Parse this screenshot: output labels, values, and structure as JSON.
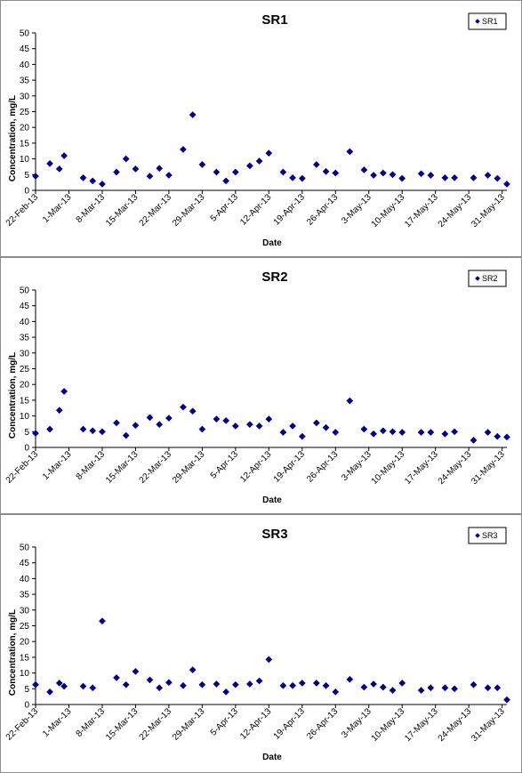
{
  "chart_data": [
    {
      "type": "scatter",
      "title": "SR1",
      "xlabel": "Date",
      "ylabel": "Concentration, mg/L",
      "ylim": [
        0,
        50
      ],
      "yticks": [
        0,
        5,
        10,
        15,
        20,
        25,
        30,
        35,
        40,
        45,
        50
      ],
      "xlim": [
        "2013-02-22",
        "2013-06-01"
      ],
      "xticks": [
        "22-Feb-13",
        "1-Mar-13",
        "8-Mar-13",
        "15-Mar-13",
        "22-Mar-13",
        "29-Mar-13",
        "5-Apr-13",
        "12-Apr-13",
        "19-Apr-13",
        "26-Apr-13",
        "3-May-13",
        "10-May-13",
        "17-May-13",
        "24-May-13",
        "31-May-13"
      ],
      "grid": false,
      "legend": "top-right",
      "series": [
        {
          "name": "SR1",
          "color": "#00008B",
          "marker": "diamond",
          "points": [
            [
              "2013-02-22",
              4.5
            ],
            [
              "2013-02-25",
              8.5
            ],
            [
              "2013-02-27",
              6.8
            ],
            [
              "2013-02-28",
              11.0
            ],
            [
              "2013-03-04",
              4.0
            ],
            [
              "2013-03-06",
              3.0
            ],
            [
              "2013-03-08",
              2.0
            ],
            [
              "2013-03-11",
              5.8
            ],
            [
              "2013-03-13",
              10.0
            ],
            [
              "2013-03-15",
              6.8
            ],
            [
              "2013-03-18",
              4.5
            ],
            [
              "2013-03-20",
              7.0
            ],
            [
              "2013-03-22",
              4.8
            ],
            [
              "2013-03-25",
              13.0
            ],
            [
              "2013-03-27",
              24.0
            ],
            [
              "2013-03-29",
              8.2
            ],
            [
              "2013-04-01",
              5.8
            ],
            [
              "2013-04-03",
              3.0
            ],
            [
              "2013-04-05",
              5.8
            ],
            [
              "2013-04-08",
              7.8
            ],
            [
              "2013-04-10",
              9.3
            ],
            [
              "2013-04-12",
              11.8
            ],
            [
              "2013-04-15",
              5.8
            ],
            [
              "2013-04-17",
              4.0
            ],
            [
              "2013-04-19",
              3.8
            ],
            [
              "2013-04-22",
              8.2
            ],
            [
              "2013-04-24",
              6.0
            ],
            [
              "2013-04-26",
              5.5
            ],
            [
              "2013-04-29",
              12.3
            ],
            [
              "2013-05-02",
              6.5
            ],
            [
              "2013-05-04",
              4.8
            ],
            [
              "2013-05-06",
              5.5
            ],
            [
              "2013-05-08",
              5.0
            ],
            [
              "2013-05-10",
              3.8
            ],
            [
              "2013-05-14",
              5.3
            ],
            [
              "2013-05-16",
              4.8
            ],
            [
              "2013-05-19",
              4.0
            ],
            [
              "2013-05-21",
              4.0
            ],
            [
              "2013-05-25",
              4.0
            ],
            [
              "2013-05-28",
              4.8
            ],
            [
              "2013-05-30",
              3.8
            ],
            [
              "2013-06-01",
              2.0
            ]
          ]
        }
      ]
    },
    {
      "type": "scatter",
      "title": "SR2",
      "xlabel": "Date",
      "ylabel": "Concentration, mg/L",
      "ylim": [
        0,
        50
      ],
      "yticks": [
        0,
        5,
        10,
        15,
        20,
        25,
        30,
        35,
        40,
        45,
        50
      ],
      "xlim": [
        "2013-02-22",
        "2013-06-01"
      ],
      "xticks": [
        "22-Feb-13",
        "1-Mar-13",
        "8-Mar-13",
        "15-Mar-13",
        "22-Mar-13",
        "29-Mar-13",
        "5-Apr-13",
        "12-Apr-13",
        "19-Apr-13",
        "26-Apr-13",
        "3-May-13",
        "10-May-13",
        "17-May-13",
        "24-May-13",
        "31-May-13"
      ],
      "grid": false,
      "legend": "top-right",
      "series": [
        {
          "name": "SR2",
          "color": "#00008B",
          "marker": "diamond",
          "points": [
            [
              "2013-02-22",
              4.5
            ],
            [
              "2013-02-25",
              5.8
            ],
            [
              "2013-02-27",
              11.8
            ],
            [
              "2013-02-28",
              17.8
            ],
            [
              "2013-03-04",
              5.8
            ],
            [
              "2013-03-06",
              5.3
            ],
            [
              "2013-03-08",
              5.0
            ],
            [
              "2013-03-11",
              7.8
            ],
            [
              "2013-03-13",
              3.8
            ],
            [
              "2013-03-15",
              7.0
            ],
            [
              "2013-03-18",
              9.5
            ],
            [
              "2013-03-20",
              7.3
            ],
            [
              "2013-03-22",
              9.3
            ],
            [
              "2013-03-25",
              12.8
            ],
            [
              "2013-03-27",
              11.5
            ],
            [
              "2013-03-29",
              5.8
            ],
            [
              "2013-04-01",
              9.0
            ],
            [
              "2013-04-03",
              8.5
            ],
            [
              "2013-04-05",
              6.8
            ],
            [
              "2013-04-08",
              7.3
            ],
            [
              "2013-04-10",
              6.8
            ],
            [
              "2013-04-12",
              9.0
            ],
            [
              "2013-04-15",
              4.8
            ],
            [
              "2013-04-17",
              6.8
            ],
            [
              "2013-04-19",
              3.5
            ],
            [
              "2013-04-22",
              7.8
            ],
            [
              "2013-04-24",
              6.3
            ],
            [
              "2013-04-26",
              4.8
            ],
            [
              "2013-04-29",
              14.8
            ],
            [
              "2013-05-02",
              5.8
            ],
            [
              "2013-05-04",
              4.3
            ],
            [
              "2013-05-06",
              5.3
            ],
            [
              "2013-05-08",
              5.0
            ],
            [
              "2013-05-10",
              4.8
            ],
            [
              "2013-05-14",
              4.8
            ],
            [
              "2013-05-16",
              4.8
            ],
            [
              "2013-05-19",
              4.3
            ],
            [
              "2013-05-21",
              5.0
            ],
            [
              "2013-05-25",
              2.3
            ],
            [
              "2013-05-28",
              4.8
            ],
            [
              "2013-05-30",
              3.5
            ],
            [
              "2013-06-01",
              3.3
            ]
          ]
        }
      ]
    },
    {
      "type": "scatter",
      "title": "SR3",
      "xlabel": "Date",
      "ylabel": "Concentration, mg/L",
      "ylim": [
        0,
        50
      ],
      "yticks": [
        0,
        5,
        10,
        15,
        20,
        25,
        30,
        35,
        40,
        45,
        50
      ],
      "xlim": [
        "2013-02-22",
        "2013-06-01"
      ],
      "xticks": [
        "22-Feb-13",
        "1-Mar-13",
        "8-Mar-13",
        "15-Mar-13",
        "22-Mar-13",
        "29-Mar-13",
        "5-Apr-13",
        "12-Apr-13",
        "19-Apr-13",
        "26-Apr-13",
        "3-May-13",
        "10-May-13",
        "17-May-13",
        "24-May-13",
        "31-May-13"
      ],
      "grid": false,
      "legend": "top-right",
      "series": [
        {
          "name": "SR3",
          "color": "#00008B",
          "marker": "diamond",
          "points": [
            [
              "2013-02-22",
              6.3
            ],
            [
              "2013-02-25",
              4.0
            ],
            [
              "2013-02-27",
              6.8
            ],
            [
              "2013-02-28",
              5.8
            ],
            [
              "2013-03-04",
              5.8
            ],
            [
              "2013-03-06",
              5.3
            ],
            [
              "2013-03-08",
              26.5
            ],
            [
              "2013-03-11",
              8.5
            ],
            [
              "2013-03-13",
              6.3
            ],
            [
              "2013-03-15",
              10.5
            ],
            [
              "2013-03-18",
              7.8
            ],
            [
              "2013-03-20",
              5.3
            ],
            [
              "2013-03-22",
              7.0
            ],
            [
              "2013-03-25",
              6.0
            ],
            [
              "2013-03-27",
              11.0
            ],
            [
              "2013-03-29",
              6.3
            ],
            [
              "2013-04-01",
              6.5
            ],
            [
              "2013-04-03",
              4.0
            ],
            [
              "2013-04-05",
              6.3
            ],
            [
              "2013-04-08",
              6.5
            ],
            [
              "2013-04-10",
              7.5
            ],
            [
              "2013-04-12",
              14.3
            ],
            [
              "2013-04-15",
              6.0
            ],
            [
              "2013-04-17",
              6.0
            ],
            [
              "2013-04-19",
              6.8
            ],
            [
              "2013-04-22",
              6.8
            ],
            [
              "2013-04-24",
              6.0
            ],
            [
              "2013-04-26",
              4.0
            ],
            [
              "2013-04-29",
              8.0
            ],
            [
              "2013-05-02",
              5.5
            ],
            [
              "2013-05-04",
              6.5
            ],
            [
              "2013-05-06",
              5.5
            ],
            [
              "2013-05-08",
              4.5
            ],
            [
              "2013-05-10",
              6.8
            ],
            [
              "2013-05-14",
              4.5
            ],
            [
              "2013-05-16",
              5.3
            ],
            [
              "2013-05-19",
              5.3
            ],
            [
              "2013-05-21",
              5.0
            ],
            [
              "2013-05-25",
              6.3
            ],
            [
              "2013-05-28",
              5.3
            ],
            [
              "2013-05-30",
              5.3
            ],
            [
              "2013-06-01",
              1.5
            ]
          ]
        }
      ]
    }
  ]
}
